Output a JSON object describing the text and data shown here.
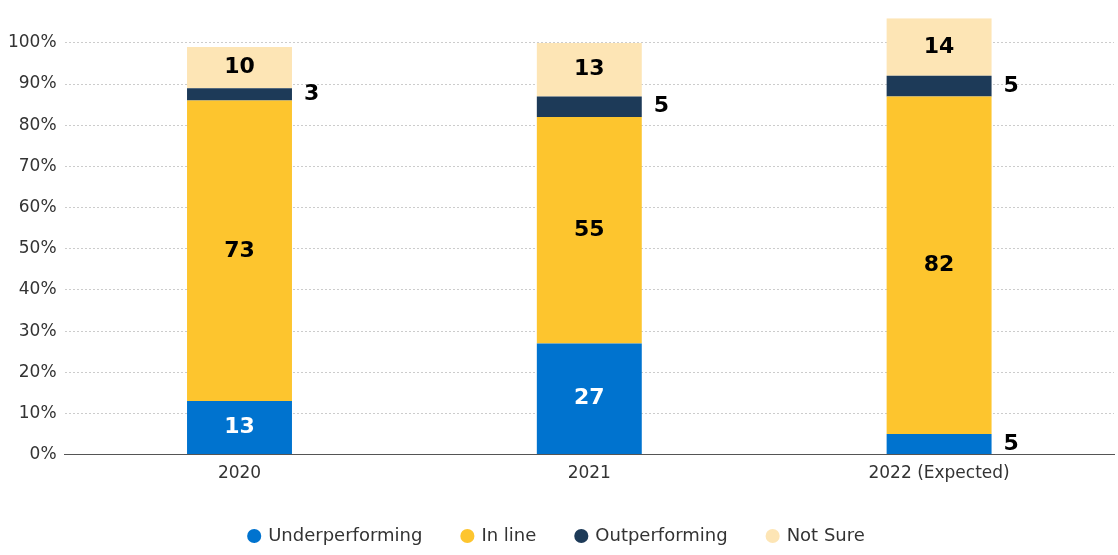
{
  "chart_data": {
    "type": "bar",
    "stacked": true,
    "categories": [
      "2020",
      "2021",
      "2022 (Expected)"
    ],
    "series": [
      {
        "name": "Underperforming",
        "color": "#0073cf",
        "values": [
          13,
          27,
          5
        ],
        "value_labels": [
          "13",
          "27",
          "5"
        ]
      },
      {
        "name": "In line",
        "color": "#fdc52e",
        "values": [
          73,
          55,
          82
        ],
        "value_labels": [
          "73",
          "55",
          "82"
        ]
      },
      {
        "name": "Outperforming",
        "color": "#1d3a58",
        "values": [
          3,
          5,
          5
        ],
        "value_labels": [
          "3",
          "5",
          "5"
        ]
      },
      {
        "name": "Not Sure",
        "color": "#fde5b5",
        "values": [
          10,
          13,
          14
        ],
        "value_labels": [
          "10",
          "13",
          "14"
        ]
      }
    ],
    "ylim": [
      0,
      106
    ],
    "yticks": [
      {
        "value": 0,
        "label": "0%"
      },
      {
        "value": 10,
        "label": "10%"
      },
      {
        "value": 20,
        "label": "20%"
      },
      {
        "value": 30,
        "label": "30%"
      },
      {
        "value": 40,
        "label": "40%"
      },
      {
        "value": 50,
        "label": "50%"
      },
      {
        "value": 60,
        "label": "60%"
      },
      {
        "value": 70,
        "label": "70%"
      },
      {
        "value": 80,
        "label": "80%"
      },
      {
        "value": 90,
        "label": "90%"
      },
      {
        "value": 100,
        "label": "100%"
      }
    ],
    "grid": "y",
    "legend": "bottom"
  }
}
